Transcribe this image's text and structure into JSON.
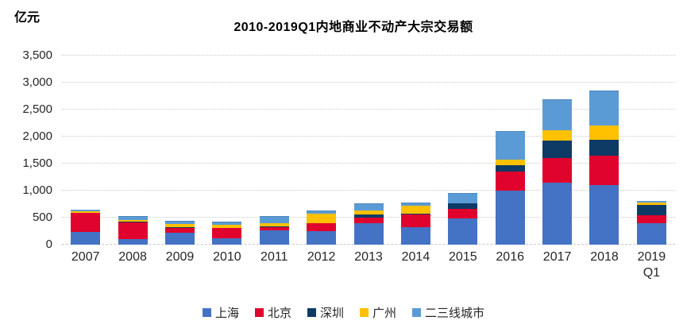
{
  "unit_label": "亿元",
  "title": "2010-2019Q1内地商业不动产大宗交易额",
  "chart_data": {
    "type": "bar",
    "stacked": true,
    "title": "2010-2019Q1内地商业不动产大宗交易额",
    "ylabel_unit": "亿元",
    "categories": [
      "2007",
      "2008",
      "2009",
      "2010",
      "2011",
      "2012",
      "2013",
      "2014",
      "2015",
      "2016",
      "2017",
      "2018",
      "2019 Q1"
    ],
    "series": [
      {
        "name": "上海",
        "color": "#4472C4",
        "values": [
          240,
          100,
          215,
          115,
          270,
          245,
          390,
          330,
          480,
          1000,
          1140,
          1100,
          400
        ]
      },
      {
        "name": "北京",
        "color": "#E0032D",
        "values": [
          350,
          310,
          95,
          190,
          50,
          145,
          110,
          230,
          180,
          350,
          465,
          540,
          145
        ]
      },
      {
        "name": "深圳",
        "color": "#0E3A66",
        "values": [
          0,
          15,
          10,
          10,
          15,
          10,
          55,
          10,
          100,
          120,
          320,
          295,
          185
        ]
      },
      {
        "name": "广州",
        "color": "#FFC000",
        "values": [
          30,
          30,
          60,
          55,
          60,
          175,
          85,
          145,
          0,
          100,
          200,
          275,
          50
        ]
      },
      {
        "name": "二三线城市",
        "color": "#5B9BD5",
        "values": [
          25,
          80,
          60,
          60,
          140,
          65,
          130,
          60,
          195,
          530,
          570,
          650,
          35
        ]
      }
    ],
    "ylim": [
      0,
      3500
    ],
    "ytick_step": 500,
    "ytick_labels": [
      "0",
      "500",
      "1,000",
      "1,500",
      "2,000",
      "2,500",
      "3,000",
      "3,500"
    ],
    "grid": "horizontal-dotted",
    "grid_color": "#C9C9C9",
    "text_color": "#262626",
    "legend_position": "bottom"
  }
}
